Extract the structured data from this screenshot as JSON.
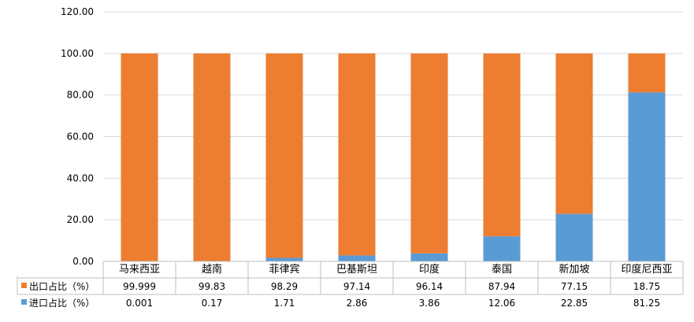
{
  "chart_data": {
    "type": "bar",
    "stacked": true,
    "categories": [
      "马来西亚",
      "越南",
      "菲律宾",
      "巴基斯坦",
      "印度",
      "泰国",
      "新加坡",
      "印度尼西亚"
    ],
    "series": [
      {
        "name": "进口占比（%）",
        "color": "#5B9BD5",
        "values": [
          0.001,
          0.17,
          1.71,
          2.86,
          3.86,
          12.06,
          22.85,
          81.25
        ],
        "labels": [
          "0.001",
          "0.17",
          "1.71",
          "2.86",
          "3.86",
          "12.06",
          "22.85",
          "81.25"
        ]
      },
      {
        "name": "出口占比（%）",
        "color": "#ED7D31",
        "values": [
          99.999,
          99.83,
          98.29,
          97.14,
          96.14,
          87.94,
          77.15,
          18.75
        ],
        "labels": [
          "99.999",
          "99.83",
          "98.29",
          "97.14",
          "96.14",
          "87.94",
          "77.15",
          "18.75"
        ]
      }
    ],
    "table_row_order": [
      1,
      0
    ],
    "ylim": [
      0,
      120
    ],
    "yticks": [
      "0.00",
      "20.00",
      "40.00",
      "60.00",
      "80.00",
      "100.00",
      "120.00"
    ],
    "grid": true,
    "legend": "data-table"
  }
}
